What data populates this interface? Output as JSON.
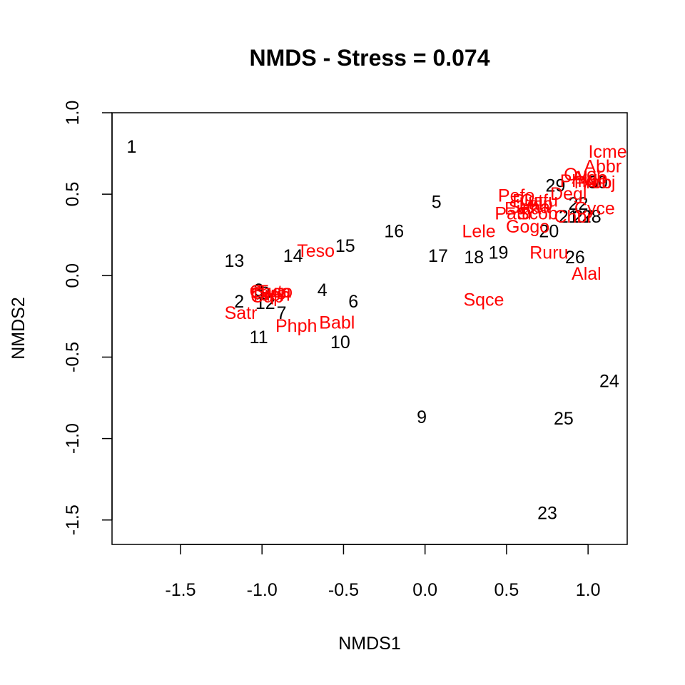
{
  "chart_data": {
    "type": "scatter",
    "title": "NMDS - Stress = 0.074",
    "xlabel": "NMDS1",
    "ylabel": "NMDS2",
    "xlim": [
      -1.92,
      1.24
    ],
    "ylim": [
      -1.65,
      1.0
    ],
    "xticks": [
      -1.5,
      -1.0,
      -0.5,
      0.0,
      0.5,
      1.0
    ],
    "xtick_labels": [
      "-1.5",
      "-1.0",
      "-0.5",
      "0.0",
      "0.5",
      "1.0"
    ],
    "yticks": [
      -1.5,
      -1.0,
      -0.5,
      0.0,
      0.5,
      1.0
    ],
    "ytick_labels": [
      "-1.5",
      "-1.0",
      "-0.5",
      "0.0",
      "0.5",
      "1.0"
    ],
    "grid": false,
    "colors": {
      "sites": "#000000",
      "species": "#ff0000"
    },
    "series": [
      {
        "role": "sites",
        "points": [
          {
            "label": "1",
            "x": -1.8,
            "y": 0.79
          },
          {
            "label": "2",
            "x": -1.14,
            "y": -0.16
          },
          {
            "label": "3",
            "x": -1.02,
            "y": -0.09
          },
          {
            "label": "4",
            "x": -0.63,
            "y": -0.09
          },
          {
            "label": "5",
            "x": 0.07,
            "y": 0.45
          },
          {
            "label": "6",
            "x": -0.44,
            "y": -0.16
          },
          {
            "label": "7",
            "x": -0.88,
            "y": -0.23
          },
          {
            "label": "8",
            "x": -0.98,
            "y": -0.11
          },
          {
            "label": "9",
            "x": -0.02,
            "y": -0.87
          },
          {
            "label": "10",
            "x": -0.52,
            "y": -0.41
          },
          {
            "label": "11",
            "x": -1.02,
            "y": -0.38
          },
          {
            "label": "12",
            "x": -0.98,
            "y": -0.17
          },
          {
            "label": "13",
            "x": -1.17,
            "y": 0.09
          },
          {
            "label": "14",
            "x": -0.81,
            "y": 0.12
          },
          {
            "label": "15",
            "x": -0.49,
            "y": 0.18
          },
          {
            "label": "16",
            "x": -0.19,
            "y": 0.27
          },
          {
            "label": "17",
            "x": 0.08,
            "y": 0.12
          },
          {
            "label": "18",
            "x": 0.3,
            "y": 0.11
          },
          {
            "label": "19",
            "x": 0.45,
            "y": 0.14
          },
          {
            "label": "20",
            "x": 0.76,
            "y": 0.27
          },
          {
            "label": "21",
            "x": 0.88,
            "y": 0.36
          },
          {
            "label": "22",
            "x": 0.94,
            "y": 0.44
          },
          {
            "label": "23",
            "x": 0.75,
            "y": -1.46
          },
          {
            "label": "24",
            "x": 1.13,
            "y": -0.65
          },
          {
            "label": "25",
            "x": 0.85,
            "y": -0.88
          },
          {
            "label": "26",
            "x": 0.92,
            "y": 0.11
          },
          {
            "label": "27",
            "x": 0.97,
            "y": 0.36
          },
          {
            "label": "28",
            "x": 1.02,
            "y": 0.36
          },
          {
            "label": "29",
            "x": 0.8,
            "y": 0.55
          },
          {
            "label": "30",
            "x": 1.06,
            "y": 0.57
          }
        ]
      },
      {
        "role": "species",
        "points": [
          {
            "label": "Icme",
            "x": 1.12,
            "y": 0.76
          },
          {
            "label": "Abbr",
            "x": 1.09,
            "y": 0.67
          },
          {
            "label": "Ovor",
            "x": 0.97,
            "y": 0.62
          },
          {
            "label": "Alge",
            "x": 1.01,
            "y": 0.6
          },
          {
            "label": "Phfo",
            "x": 0.94,
            "y": 0.58
          },
          {
            "label": "Prob",
            "x": 1.03,
            "y": 0.57
          },
          {
            "label": "Arbj",
            "x": 1.07,
            "y": 0.57
          },
          {
            "label": "Degl",
            "x": 0.88,
            "y": 0.5
          },
          {
            "label": "Pefo",
            "x": 0.56,
            "y": 0.49
          },
          {
            "label": "Piut",
            "x": 0.63,
            "y": 0.46
          },
          {
            "label": "Cafu",
            "x": 0.7,
            "y": 0.46
          },
          {
            "label": "Laip",
            "x": 0.68,
            "y": 0.44
          },
          {
            "label": "Saha",
            "x": 0.64,
            "y": 0.42
          },
          {
            "label": "Eufa",
            "x": 0.6,
            "y": 0.41
          },
          {
            "label": "Patu",
            "x": 0.54,
            "y": 0.38
          },
          {
            "label": "Scob",
            "x": 0.69,
            "y": 0.38
          },
          {
            "label": "Cyce",
            "x": 1.04,
            "y": 0.41
          },
          {
            "label": "Chbr",
            "x": 0.91,
            "y": 0.36
          },
          {
            "label": "Gogo",
            "x": 0.63,
            "y": 0.3
          },
          {
            "label": "Lele",
            "x": 0.33,
            "y": 0.27
          },
          {
            "label": "Ruru",
            "x": 0.76,
            "y": 0.14
          },
          {
            "label": "Alal",
            "x": 0.99,
            "y": 0.01
          },
          {
            "label": "Sqce",
            "x": 0.36,
            "y": -0.15
          },
          {
            "label": "Teso",
            "x": -0.67,
            "y": 0.15
          },
          {
            "label": "Tuto",
            "x": -0.92,
            "y": -0.1
          },
          {
            "label": "Caca",
            "x": -0.95,
            "y": -0.1
          },
          {
            "label": "Orro",
            "x": -0.96,
            "y": -0.11
          },
          {
            "label": "Tuph",
            "x": -0.95,
            "y": -0.12
          },
          {
            "label": "Cup",
            "x": -0.97,
            "y": -0.13
          },
          {
            "label": "Satr",
            "x": -1.13,
            "y": -0.23
          },
          {
            "label": "Phph",
            "x": -0.79,
            "y": -0.31
          },
          {
            "label": "Babl",
            "x": -0.54,
            "y": -0.29
          }
        ]
      }
    ]
  }
}
